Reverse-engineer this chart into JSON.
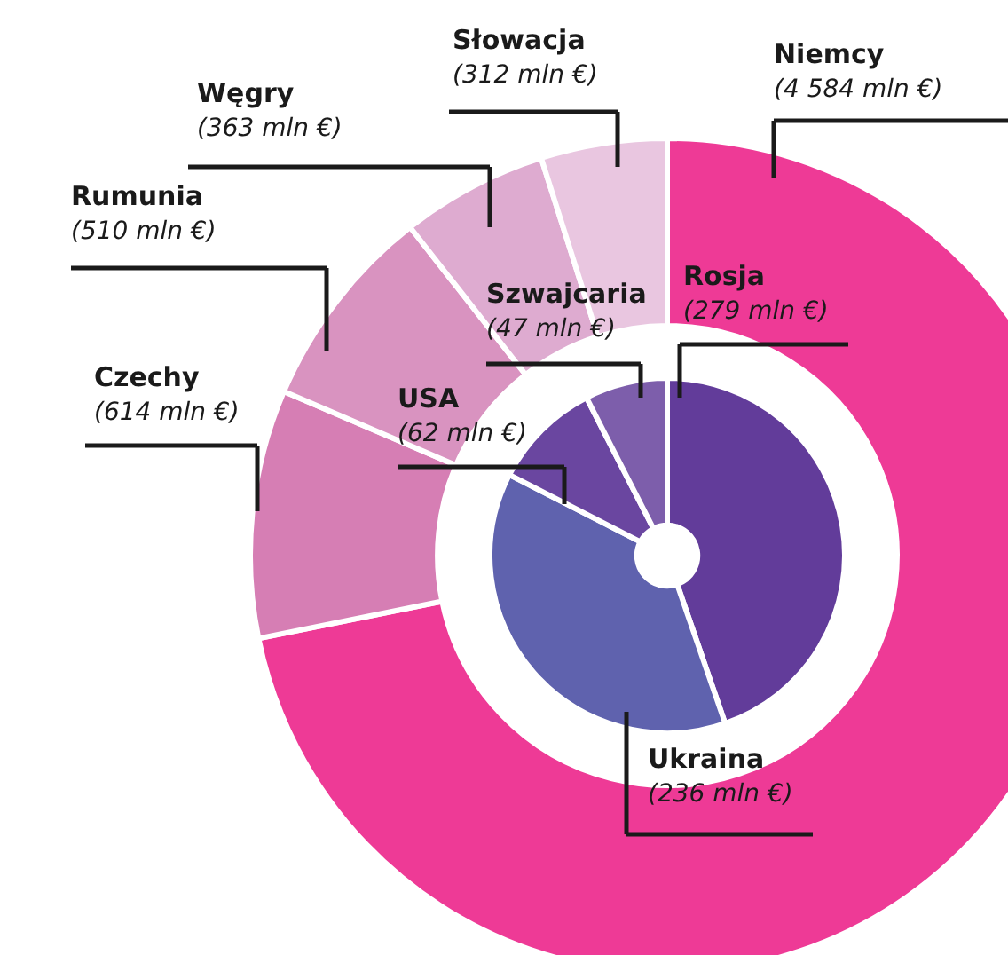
{
  "chart_data": [
    {
      "type": "donut",
      "categories": [
        "Niemcy",
        "Czechy",
        "Rumunia",
        "Węgry",
        "Słowacja"
      ],
      "values": [
        4584,
        614,
        510,
        363,
        312
      ],
      "colors": [
        "#ee3a96",
        "#d67eb4",
        "#d993c0",
        "#deabd0",
        "#e9c6e0"
      ],
      "value_labels": [
        "(4 584 mln €)",
        "(614 mln €)",
        "(510 mln €)",
        "(363 mln €)",
        "(312 mln €)"
      ]
    },
    {
      "type": "donut",
      "categories": [
        "Rosja",
        "Ukraina",
        "USA",
        "Szwajcaria"
      ],
      "values": [
        279,
        236,
        62,
        47
      ],
      "colors": [
        "#623c9a",
        "#5f62ae",
        "#6a46a0",
        "#7d5eab"
      ],
      "value_labels": [
        "(279 mln €)",
        "(236 mln €)",
        "(62 mln €)",
        "(47 mln €)"
      ]
    }
  ]
}
